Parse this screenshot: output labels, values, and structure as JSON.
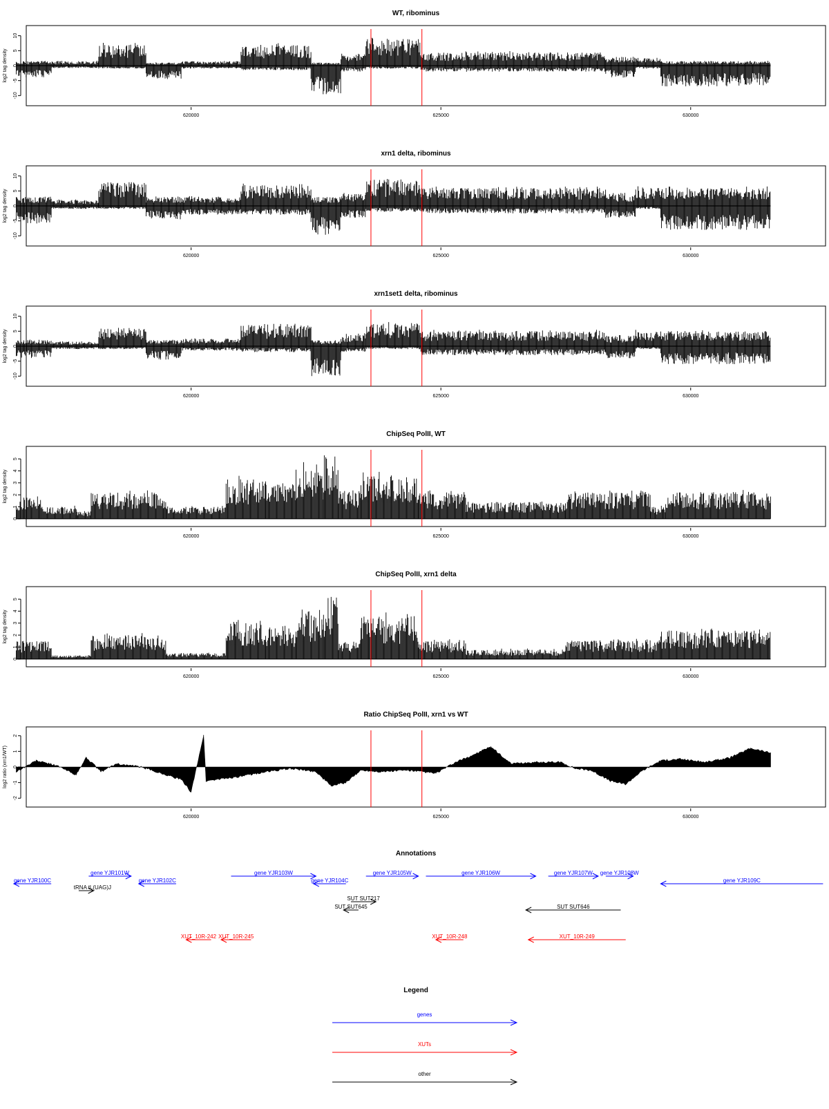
{
  "xaxis": {
    "ticks": [
      620000,
      625000,
      630000
    ],
    "tick_labels": [
      "620000",
      "625000",
      "630000"
    ],
    "xlim": [
      616700,
      632700
    ],
    "data_range": [
      616500,
      631600
    ]
  },
  "markers": {
    "color": "#ff0000",
    "positions": [
      623600,
      624620
    ]
  },
  "chart_data": [
    {
      "type": "bar",
      "title": "WT, ribominus",
      "ylabel": "log2 tag density",
      "ylim": [
        -12,
        12
      ],
      "yticks": [
        -10,
        -5,
        0,
        5,
        10
      ],
      "ytick_labels": [
        "-10",
        "-5",
        "0",
        "5",
        "10"
      ],
      "profile": [
        {
          "start": 616500,
          "end": 617200,
          "top": 1.5,
          "bottom": -4
        },
        {
          "start": 617200,
          "end": 618150,
          "top": 1.5,
          "bottom": -0.8
        },
        {
          "start": 618150,
          "end": 619100,
          "top": 7,
          "bottom": -1
        },
        {
          "start": 619100,
          "end": 619800,
          "top": 1,
          "bottom": -4.5
        },
        {
          "start": 619800,
          "end": 621000,
          "top": 1.5,
          "bottom": -1
        },
        {
          "start": 621000,
          "end": 622400,
          "top": 7,
          "bottom": -1.5
        },
        {
          "start": 622400,
          "end": 623000,
          "top": 1,
          "bottom": -10
        },
        {
          "start": 623000,
          "end": 623500,
          "top": 4,
          "bottom": -2
        },
        {
          "start": 623500,
          "end": 624600,
          "top": 9,
          "bottom": -1
        },
        {
          "start": 624600,
          "end": 628300,
          "top": 4.5,
          "bottom": -2
        },
        {
          "start": 628300,
          "end": 628900,
          "top": 3,
          "bottom": -4
        },
        {
          "start": 628900,
          "end": 629400,
          "top": 2.5,
          "bottom": -1
        },
        {
          "start": 629400,
          "end": 631600,
          "top": 1.5,
          "bottom": -7
        }
      ]
    },
    {
      "type": "bar",
      "title": "xrn1 delta, ribominus",
      "ylabel": "log2 tag density",
      "ylim": [
        -12,
        12
      ],
      "yticks": [
        -10,
        -5,
        0,
        5,
        10
      ],
      "ytick_labels": [
        "-10",
        "-5",
        "0",
        "5",
        "10"
      ],
      "profile": [
        {
          "start": 616500,
          "end": 617200,
          "top": 3,
          "bottom": -6
        },
        {
          "start": 617200,
          "end": 618150,
          "top": 2,
          "bottom": -1
        },
        {
          "start": 618150,
          "end": 619100,
          "top": 8,
          "bottom": -1
        },
        {
          "start": 619100,
          "end": 619800,
          "top": 3,
          "bottom": -4.5
        },
        {
          "start": 619800,
          "end": 621000,
          "top": 3,
          "bottom": -3
        },
        {
          "start": 621000,
          "end": 622400,
          "top": 7,
          "bottom": -3
        },
        {
          "start": 622400,
          "end": 623000,
          "top": 3,
          "bottom": -10
        },
        {
          "start": 623000,
          "end": 623500,
          "top": 4,
          "bottom": -4
        },
        {
          "start": 623500,
          "end": 624600,
          "top": 8.5,
          "bottom": -2
        },
        {
          "start": 624600,
          "end": 628300,
          "top": 6,
          "bottom": -2.5
        },
        {
          "start": 628300,
          "end": 628900,
          "top": 4,
          "bottom": -4
        },
        {
          "start": 628900,
          "end": 629400,
          "top": 6,
          "bottom": -1
        },
        {
          "start": 629400,
          "end": 631600,
          "top": 6,
          "bottom": -8
        }
      ]
    },
    {
      "type": "bar",
      "title": "xrn1set1 delta, ribominus",
      "ylabel": "log2 tag density",
      "ylim": [
        -12,
        12
      ],
      "yticks": [
        -10,
        -5,
        0,
        5,
        10
      ],
      "ytick_labels": [
        "-10",
        "-5",
        "0",
        "5",
        "10"
      ],
      "profile": [
        {
          "start": 616500,
          "end": 617200,
          "top": 2,
          "bottom": -4
        },
        {
          "start": 617200,
          "end": 618150,
          "top": 1.5,
          "bottom": -1
        },
        {
          "start": 618150,
          "end": 619100,
          "top": 6,
          "bottom": -1
        },
        {
          "start": 619100,
          "end": 619800,
          "top": 2,
          "bottom": -4.5
        },
        {
          "start": 619800,
          "end": 621000,
          "top": 2.5,
          "bottom": -1.5
        },
        {
          "start": 621000,
          "end": 622400,
          "top": 7,
          "bottom": -2
        },
        {
          "start": 622400,
          "end": 623000,
          "top": 2,
          "bottom": -10
        },
        {
          "start": 623000,
          "end": 623500,
          "top": 4,
          "bottom": -2
        },
        {
          "start": 623500,
          "end": 624600,
          "top": 7.5,
          "bottom": -1
        },
        {
          "start": 624600,
          "end": 628300,
          "top": 5,
          "bottom": -3
        },
        {
          "start": 628300,
          "end": 628900,
          "top": 3.5,
          "bottom": -4
        },
        {
          "start": 628900,
          "end": 629400,
          "top": 5,
          "bottom": -1
        },
        {
          "start": 629400,
          "end": 631600,
          "top": 5,
          "bottom": -6
        }
      ]
    },
    {
      "type": "bar",
      "title": "ChipSeq PolII, WT",
      "ylabel": "log2 tag density",
      "ylim": [
        -0.3,
        5.7
      ],
      "yticks": [
        0,
        1,
        2,
        3,
        4,
        5
      ],
      "ytick_labels": [
        "0",
        "1",
        "2",
        "3",
        "4",
        "5"
      ],
      "profile": [
        {
          "start": 616500,
          "end": 617000,
          "top": 1.8,
          "bottom": 0
        },
        {
          "start": 617000,
          "end": 617700,
          "top": 1.0,
          "bottom": 0
        },
        {
          "start": 617700,
          "end": 618000,
          "top": 0.6,
          "bottom": 0
        },
        {
          "start": 618000,
          "end": 619500,
          "top": 2.2,
          "bottom": 0
        },
        {
          "start": 619500,
          "end": 620700,
          "top": 1.0,
          "bottom": 0
        },
        {
          "start": 620700,
          "end": 621500,
          "top": 3.3,
          "bottom": 0
        },
        {
          "start": 621500,
          "end": 622100,
          "top": 3.0,
          "bottom": 0
        },
        {
          "start": 622100,
          "end": 622650,
          "top": 4.3,
          "bottom": 0
        },
        {
          "start": 622650,
          "end": 622950,
          "top": 5.3,
          "bottom": 0
        },
        {
          "start": 622950,
          "end": 623400,
          "top": 2.3,
          "bottom": 0
        },
        {
          "start": 623400,
          "end": 624550,
          "top": 3.7,
          "bottom": 0
        },
        {
          "start": 624550,
          "end": 625500,
          "top": 2.2,
          "bottom": 0
        },
        {
          "start": 625500,
          "end": 627500,
          "top": 1.4,
          "bottom": 0
        },
        {
          "start": 627500,
          "end": 629200,
          "top": 2.2,
          "bottom": 0
        },
        {
          "start": 629200,
          "end": 629500,
          "top": 1.0,
          "bottom": 0
        },
        {
          "start": 629500,
          "end": 631600,
          "top": 2.2,
          "bottom": 0
        }
      ]
    },
    {
      "type": "bar",
      "title": "ChipSeq PolII, xrn1 delta",
      "ylabel": "log2 tag density",
      "ylim": [
        -0.3,
        5.7
      ],
      "yticks": [
        0,
        1,
        2,
        3,
        4,
        5
      ],
      "ytick_labels": [
        "0",
        "1",
        "2",
        "3",
        "4",
        "5"
      ],
      "profile": [
        {
          "start": 616500,
          "end": 617200,
          "top": 1.5,
          "bottom": 0
        },
        {
          "start": 617200,
          "end": 618000,
          "top": 0.3,
          "bottom": 0
        },
        {
          "start": 618000,
          "end": 619500,
          "top": 2.0,
          "bottom": 0
        },
        {
          "start": 619500,
          "end": 620700,
          "top": 0.5,
          "bottom": 0
        },
        {
          "start": 620700,
          "end": 621500,
          "top": 3.0,
          "bottom": 0
        },
        {
          "start": 621500,
          "end": 622100,
          "top": 2.8,
          "bottom": 0
        },
        {
          "start": 622100,
          "end": 622650,
          "top": 4.0,
          "bottom": 0
        },
        {
          "start": 622650,
          "end": 622950,
          "top": 4.8,
          "bottom": 0
        },
        {
          "start": 622950,
          "end": 623400,
          "top": 1.5,
          "bottom": 0
        },
        {
          "start": 623400,
          "end": 624550,
          "top": 3.6,
          "bottom": 0
        },
        {
          "start": 624550,
          "end": 625500,
          "top": 1.5,
          "bottom": 0
        },
        {
          "start": 625500,
          "end": 627500,
          "top": 0.8,
          "bottom": 0
        },
        {
          "start": 627500,
          "end": 629400,
          "top": 1.6,
          "bottom": 0
        },
        {
          "start": 629400,
          "end": 631600,
          "top": 2.4,
          "bottom": 0
        }
      ]
    },
    {
      "type": "area",
      "title": "Ratio ChipSeq PolII, xrn1 vs WT",
      "ylabel": "log2 ratio (xrn1/WT)",
      "ylim": [
        -2.3,
        2.3
      ],
      "yticks": [
        -2,
        -1,
        0,
        1,
        2
      ],
      "ytick_labels": [
        "-2",
        "-1",
        "0",
        "1",
        "2"
      ],
      "x": [
        616500,
        616900,
        617300,
        617700,
        617900,
        618200,
        618500,
        619000,
        619400,
        619800,
        620000,
        620250,
        620300,
        620500,
        621000,
        621500,
        622000,
        622500,
        622800,
        623100,
        623400,
        623800,
        624300,
        624900,
        625300,
        625600,
        626000,
        626400,
        626900,
        627400,
        627700,
        628000,
        628400,
        628700,
        629000,
        629400,
        629800,
        630300,
        630800,
        631200,
        631600
      ],
      "y": [
        -0.3,
        0.4,
        0.1,
        -0.5,
        0.6,
        -0.3,
        0.2,
        0.0,
        -0.4,
        -0.8,
        -1.6,
        2.0,
        -0.9,
        -0.8,
        -0.6,
        -0.3,
        -0.1,
        -0.3,
        -1.2,
        -1.0,
        -0.2,
        -0.3,
        -0.2,
        -0.4,
        0.3,
        0.7,
        1.3,
        0.2,
        0.3,
        0.3,
        -0.1,
        -0.2,
        -0.9,
        -1.1,
        -0.3,
        0.4,
        0.5,
        0.3,
        0.6,
        1.2,
        0.9
      ]
    }
  ],
  "annotations": {
    "title": "Annotations",
    "features": [
      {
        "label": "gene YJR100C",
        "start": 616450,
        "end": 617200,
        "strand": "-",
        "row": 2,
        "kind": "gene",
        "color": "#0000ff"
      },
      {
        "label": "gene YJR101W",
        "start": 617950,
        "end": 618800,
        "strand": "+",
        "row": 1,
        "kind": "gene",
        "color": "#0000ff"
      },
      {
        "label": "gene YJR102C",
        "start": 618950,
        "end": 619700,
        "strand": "-",
        "row": 2,
        "kind": "gene",
        "color": "#0000ff"
      },
      {
        "label": "gene YJR103W",
        "start": 620800,
        "end": 622500,
        "strand": "+",
        "row": 1,
        "kind": "gene",
        "color": "#0000ff"
      },
      {
        "label": "gene YJR104C",
        "start": 622450,
        "end": 623100,
        "strand": "-",
        "row": 2,
        "kind": "gene",
        "color": "#0000ff"
      },
      {
        "label": "gene YJR105W",
        "start": 623500,
        "end": 624550,
        "strand": "+",
        "row": 1,
        "kind": "gene",
        "color": "#0000ff"
      },
      {
        "label": "gene YJR106W",
        "start": 624700,
        "end": 626900,
        "strand": "+",
        "row": 1,
        "kind": "gene",
        "color": "#0000ff"
      },
      {
        "label": "gene YJR107W",
        "start": 627150,
        "end": 628150,
        "strand": "+",
        "row": 1,
        "kind": "gene",
        "color": "#0000ff"
      },
      {
        "label": "gene YJR108W",
        "start": 628300,
        "end": 628850,
        "strand": "+",
        "row": 1,
        "kind": "gene",
        "color": "#0000ff"
      },
      {
        "label": "gene YJR109C",
        "start": 629400,
        "end": 632650,
        "strand": "-",
        "row": 2,
        "kind": "gene",
        "color": "#0000ff"
      },
      {
        "label": "tRNA tL(UAG)J",
        "start": 617750,
        "end": 618050,
        "strand": "+",
        "row": 3,
        "kind": "other",
        "color": "#000000"
      },
      {
        "label": "SUT SUT217",
        "start": 623200,
        "end": 623700,
        "strand": "+",
        "row": 4,
        "kind": "other",
        "color": "#000000"
      },
      {
        "label": "SUT SUT645",
        "start": 623050,
        "end": 623350,
        "strand": "-",
        "row": 5,
        "kind": "other",
        "color": "#000000"
      },
      {
        "label": "SUT SUT646",
        "start": 626700,
        "end": 628600,
        "strand": "-",
        "row": 5,
        "kind": "other",
        "color": "#000000"
      },
      {
        "label": "XUT_10R-242",
        "start": 619900,
        "end": 620400,
        "strand": "-",
        "row": 6,
        "kind": "xut",
        "color": "#ff0000"
      },
      {
        "label": "XUT_10R-245",
        "start": 620600,
        "end": 621200,
        "strand": "-",
        "row": 6,
        "kind": "xut",
        "color": "#ff0000"
      },
      {
        "label": "XUT_10R-248",
        "start": 624900,
        "end": 625450,
        "strand": "-",
        "row": 6,
        "kind": "xut",
        "color": "#ff0000"
      },
      {
        "label": "XUT_10R-249",
        "start": 626750,
        "end": 628700,
        "strand": "-",
        "row": 6,
        "kind": "xut",
        "color": "#ff0000"
      }
    ]
  },
  "legend": {
    "title": "Legend",
    "items": [
      {
        "label": "genes",
        "color": "#0000ff"
      },
      {
        "label": "XUTs",
        "color": "#ff0000"
      },
      {
        "label": "other",
        "color": "#000000"
      }
    ]
  }
}
